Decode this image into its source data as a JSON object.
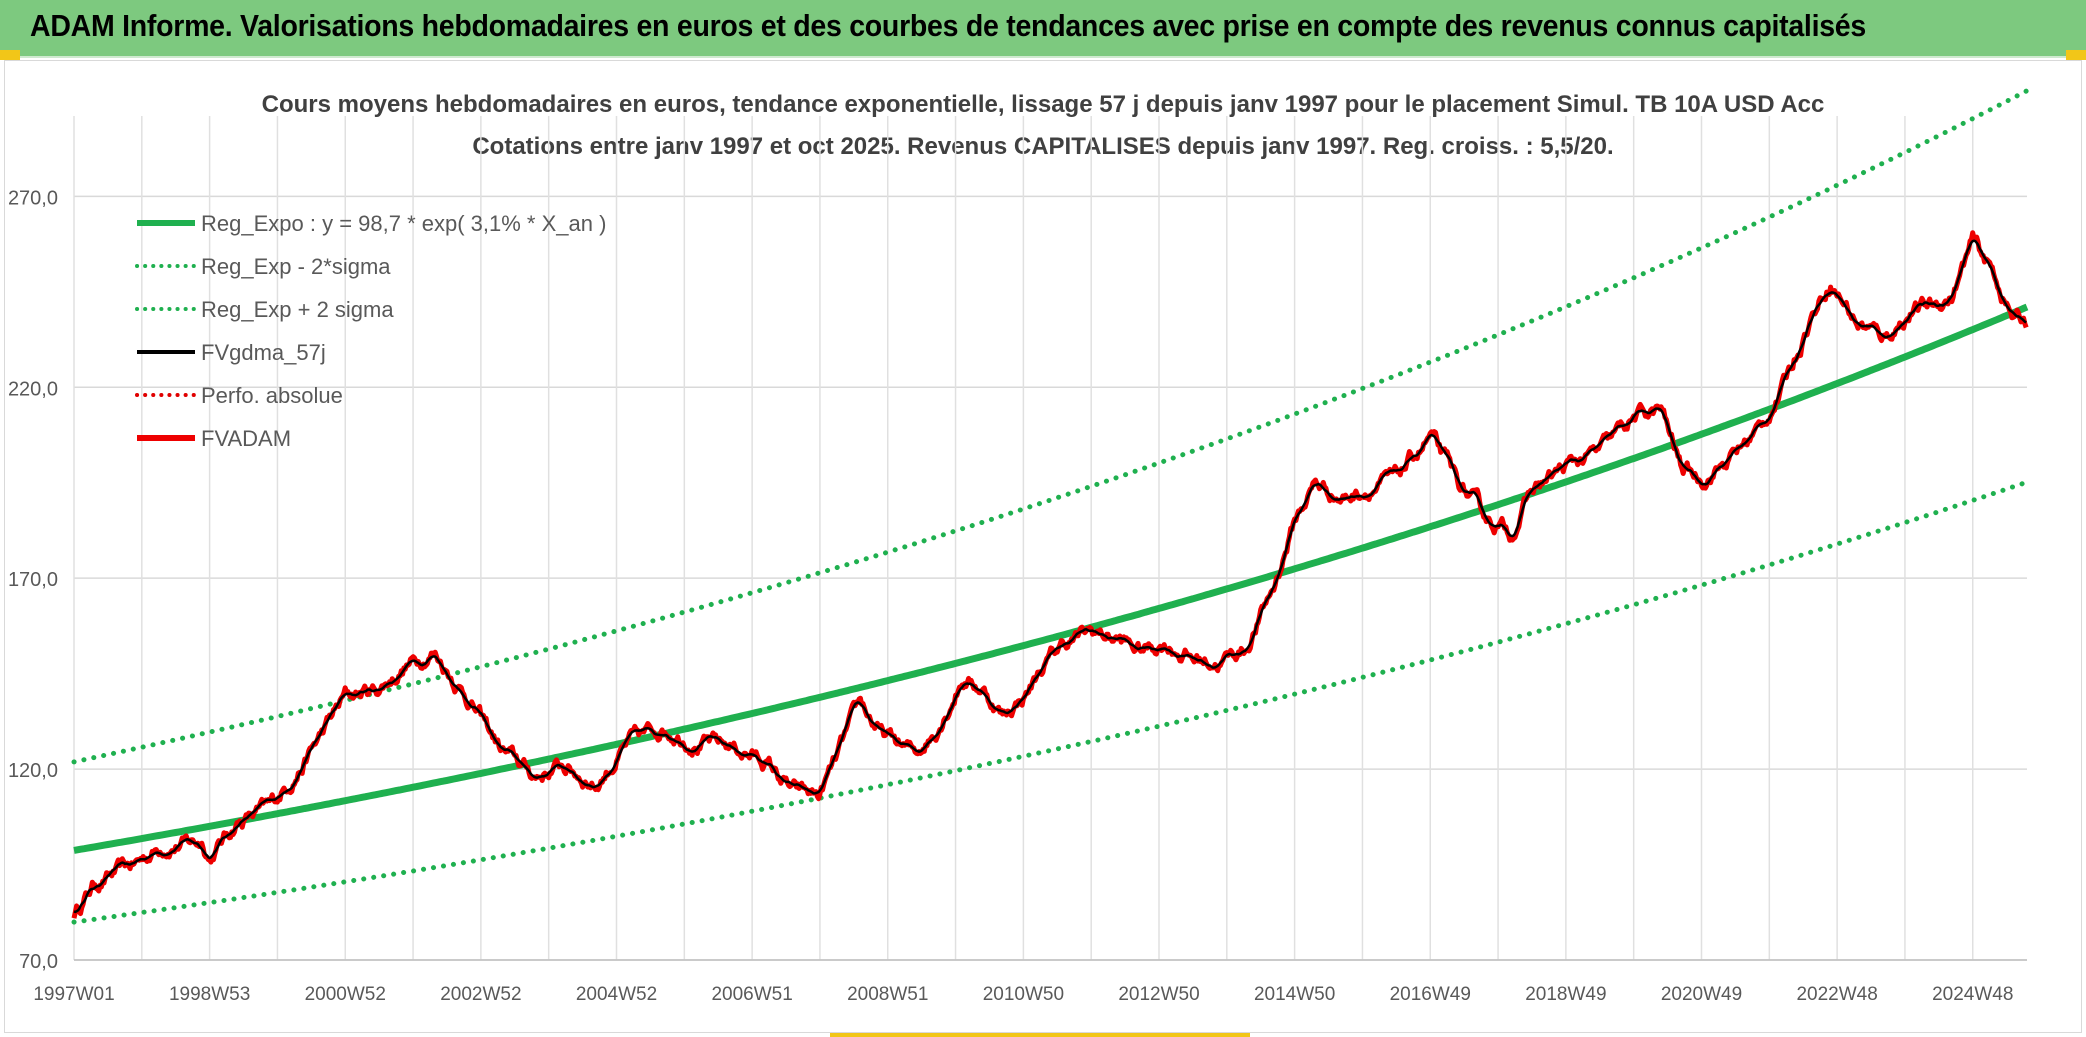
{
  "header": {
    "title": "ADAM Informe. Valorisations hebdomadaires en euros et des courbes de tendances avec prise en compte des revenus connus capitalisés",
    "bg_color": "#7dc97f",
    "accent_color": "#f2c618"
  },
  "chart_data": {
    "type": "line",
    "title": "Cours moyens hebdomadaires en euros, tendance exponentielle, lissage 57 j depuis janv 1997 pour le placement Simul. TB 10A USD Acc",
    "subtitle": "Cotations entre janv 1997 et oct 2025. Revenus CAPITALISES depuis janv 1997. Reg. croiss. : 5,5/20.",
    "xlabel": "",
    "ylabel": "",
    "x_range_years": [
      1997.0,
      2025.8
    ],
    "ylim": [
      70,
      290
    ],
    "y_ticks": [
      70,
      120,
      170,
      220,
      270
    ],
    "y_tick_labels": [
      "70,0",
      "120,0",
      "170,0",
      "220,0",
      "270,0"
    ],
    "x_ticks": [
      {
        "t": 1997.0,
        "label": "1997W01"
      },
      {
        "t": 1999.0,
        "label": "1998W53"
      },
      {
        "t": 2001.0,
        "label": "2000W52"
      },
      {
        "t": 2003.0,
        "label": "2002W52"
      },
      {
        "t": 2005.0,
        "label": "2004W52"
      },
      {
        "t": 2007.0,
        "label": "2006W51"
      },
      {
        "t": 2009.0,
        "label": "2008W51"
      },
      {
        "t": 2011.0,
        "label": "2010W50"
      },
      {
        "t": 2013.0,
        "label": "2012W50"
      },
      {
        "t": 2015.0,
        "label": "2014W50"
      },
      {
        "t": 2017.0,
        "label": "2016W49"
      },
      {
        "t": 2019.0,
        "label": "2018W49"
      },
      {
        "t": 2021.0,
        "label": "2020W49"
      },
      {
        "t": 2023.0,
        "label": "2022W48"
      },
      {
        "t": 2025.0,
        "label": "2024W48"
      }
    ],
    "grid": true,
    "legend_position": "top-left",
    "regression": {
      "a": 98.7,
      "rate": 0.031,
      "sigma_factor": 1.235
    },
    "series": [
      {
        "name": "Reg_Expo : y = 98,7 * exp( 3,1% *  X_an )",
        "color": "#1fb04f",
        "style": "solid-thick"
      },
      {
        "name": "Reg_Exp - 2*sigma",
        "color": "#1fb04f",
        "style": "dotted"
      },
      {
        "name": "Reg_Exp + 2 sigma",
        "color": "#1fb04f",
        "style": "dotted"
      },
      {
        "name": "FVgdma_57j",
        "color": "#000000",
        "style": "solid"
      },
      {
        "name": "Perfo. absolue",
        "color": "#e00000",
        "style": "dotted"
      },
      {
        "name": "FVADAM",
        "color": "#ee0000",
        "style": "solid-thick"
      }
    ],
    "fvadam_anchors": {
      "t": [
        1997.0,
        1997.3,
        1997.9,
        1998.3,
        1998.9,
        1999.0,
        1999.4,
        1999.9,
        2000.4,
        2001.0,
        2001.5,
        2001.9,
        2002.3,
        2002.8,
        2003.3,
        2003.8,
        2004.2,
        2004.7,
        2005.2,
        2005.7,
        2006.2,
        2006.7,
        2007.2,
        2007.6,
        2008.0,
        2008.4,
        2008.6,
        2008.9,
        2009.4,
        2009.7,
        2010.1,
        2010.4,
        2010.7,
        2011.0,
        2011.3,
        2011.6,
        2012.0,
        2012.4,
        2012.7,
        2013.1,
        2013.5,
        2013.9,
        2014.3,
        2014.7,
        2015.0,
        2015.3,
        2015.7,
        2016.0,
        2016.5,
        2017.0,
        2017.4,
        2017.8,
        2018.2,
        2018.5,
        2019.0,
        2019.5,
        2020.0,
        2020.4,
        2020.7,
        2021.0,
        2021.4,
        2021.9,
        2022.2,
        2022.6,
        2022.9,
        2023.3,
        2023.7,
        2024.1,
        2024.5,
        2024.7,
        2025.0,
        2025.3,
        2025.6,
        2025.8
      ],
      "v": [
        82,
        90,
        95,
        100,
        101,
        97,
        106,
        110,
        122,
        139,
        141,
        147,
        151,
        139,
        125,
        118,
        121,
        116,
        127,
        131,
        127,
        126,
        122,
        114,
        113,
        129,
        137,
        129,
        124,
        130,
        144,
        141,
        134,
        139,
        147,
        153,
        156,
        154,
        151,
        153,
        149,
        148,
        152,
        168,
        185,
        195,
        191,
        193,
        196,
        207,
        195,
        186,
        182,
        193,
        199,
        203,
        212,
        214,
        199,
        196,
        201,
        210,
        220,
        238,
        248,
        237,
        233,
        240,
        242,
        244,
        258,
        250,
        238,
        237
      ]
    }
  }
}
